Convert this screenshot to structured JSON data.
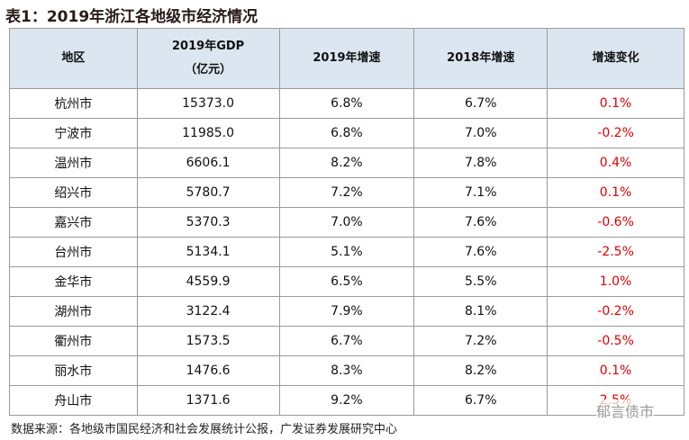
{
  "title": "表1：2019年浙江各地级市经济情况",
  "table": {
    "header": [
      "地区",
      [
        "2019年GDP",
        "（亿元）"
      ],
      "2019年增速",
      "2018年增速",
      "增速变化"
    ],
    "rows": [
      [
        "杭州市",
        "15373.0",
        "6.8%",
        "6.7%",
        "0.1%"
      ],
      [
        "宁波市",
        "11985.0",
        "6.8%",
        "7.0%",
        "-0.2%"
      ],
      [
        "温州市",
        "6606.1",
        "8.2%",
        "7.8%",
        "0.4%"
      ],
      [
        "绍兴市",
        "5780.7",
        "7.2%",
        "7.1%",
        "0.1%"
      ],
      [
        "嘉兴市",
        "5370.3",
        "7.0%",
        "7.6%",
        "-0.6%"
      ],
      [
        "台州市",
        "5134.1",
        "5.1%",
        "7.6%",
        "-2.5%"
      ],
      [
        "金华市",
        "4559.9",
        "6.5%",
        "5.5%",
        "1.0%"
      ],
      [
        "湖州市",
        "3122.4",
        "7.9%",
        "8.1%",
        "-0.2%"
      ],
      [
        "衢州市",
        "1573.5",
        "6.7%",
        "7.2%",
        "-0.5%"
      ],
      [
        "丽水市",
        "1476.6",
        "8.3%",
        "8.2%",
        "0.1%"
      ],
      [
        "舟山市",
        "1371.6",
        "9.2%",
        "6.7%",
        "2.5%"
      ]
    ]
  },
  "source": "数据来源：各地级市国民经济和社会发展统计公报，广发证券发展研究中心",
  "watermark": "郁言债市"
}
